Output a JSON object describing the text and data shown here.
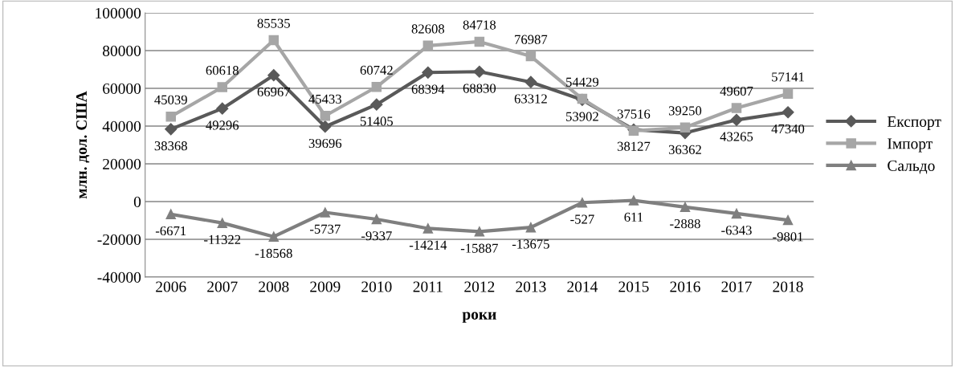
{
  "chart_data": {
    "type": "line",
    "xlabel": "роки",
    "ylabel": "млн. дол. США",
    "categories": [
      "2006",
      "2007",
      "2008",
      "2009",
      "2010",
      "2011",
      "2012",
      "2013",
      "2014",
      "2015",
      "2016",
      "2017",
      "2018"
    ],
    "series": [
      {
        "name": "Експорт",
        "color": "#595959",
        "marker": "diamond",
        "values": [
          38368,
          49296,
          66967,
          39696,
          51405,
          68394,
          68830,
          63312,
          53902,
          38127,
          36362,
          43265,
          47340
        ]
      },
      {
        "name": "Імпорт",
        "color": "#a6a6a6",
        "marker": "square",
        "values": [
          45039,
          60618,
          85535,
          45433,
          60742,
          82608,
          84718,
          76987,
          54429,
          37516,
          39250,
          49607,
          57141
        ]
      },
      {
        "name": "Сальдо",
        "color": "#7f7f7f",
        "marker": "triangle",
        "values": [
          -6671,
          -11322,
          -18568,
          -5737,
          -9337,
          -14214,
          -15887,
          -13675,
          -527,
          611,
          -2888,
          -6343,
          -9801
        ]
      }
    ],
    "ylim": [
      -40000,
      100000
    ],
    "yticks": [
      -40000,
      -20000,
      0,
      20000,
      40000,
      60000,
      80000,
      100000
    ],
    "grid": "y",
    "legend": "right",
    "data_labels": true,
    "line_style": "solid"
  }
}
